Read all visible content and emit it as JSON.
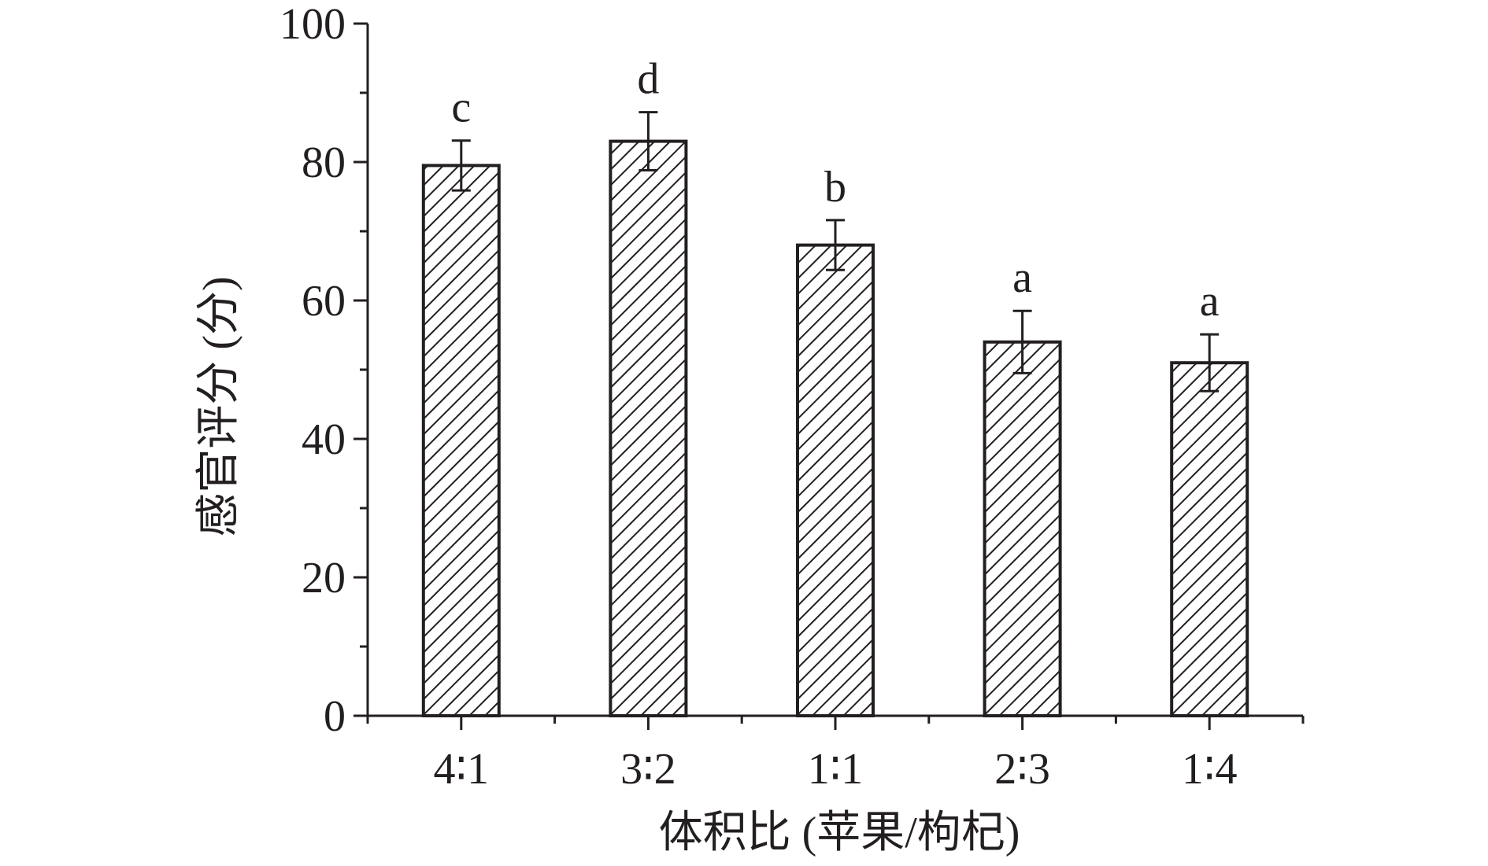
{
  "chart_data": {
    "type": "bar",
    "title": "",
    "xlabel": "体积比 (苹果/枸杞)",
    "ylabel": "感官评分 (分)",
    "categories": [
      "4∶1",
      "3∶2",
      "1∶1",
      "2∶3",
      "1∶4"
    ],
    "values": [
      79.5,
      83.0,
      68.0,
      54.0,
      51.0
    ],
    "errors": [
      3.6,
      4.2,
      3.6,
      4.5,
      4.1
    ],
    "significance_letters": [
      "c",
      "d",
      "b",
      "a",
      "a"
    ],
    "ylim": [
      0,
      100
    ],
    "yticks": [
      0,
      20,
      40,
      60,
      80,
      100
    ],
    "grid": false,
    "legend": "none",
    "bar_fill": "diagonal-hatch",
    "colors": {
      "stroke": "#231f20",
      "background": "#ffffff"
    }
  }
}
